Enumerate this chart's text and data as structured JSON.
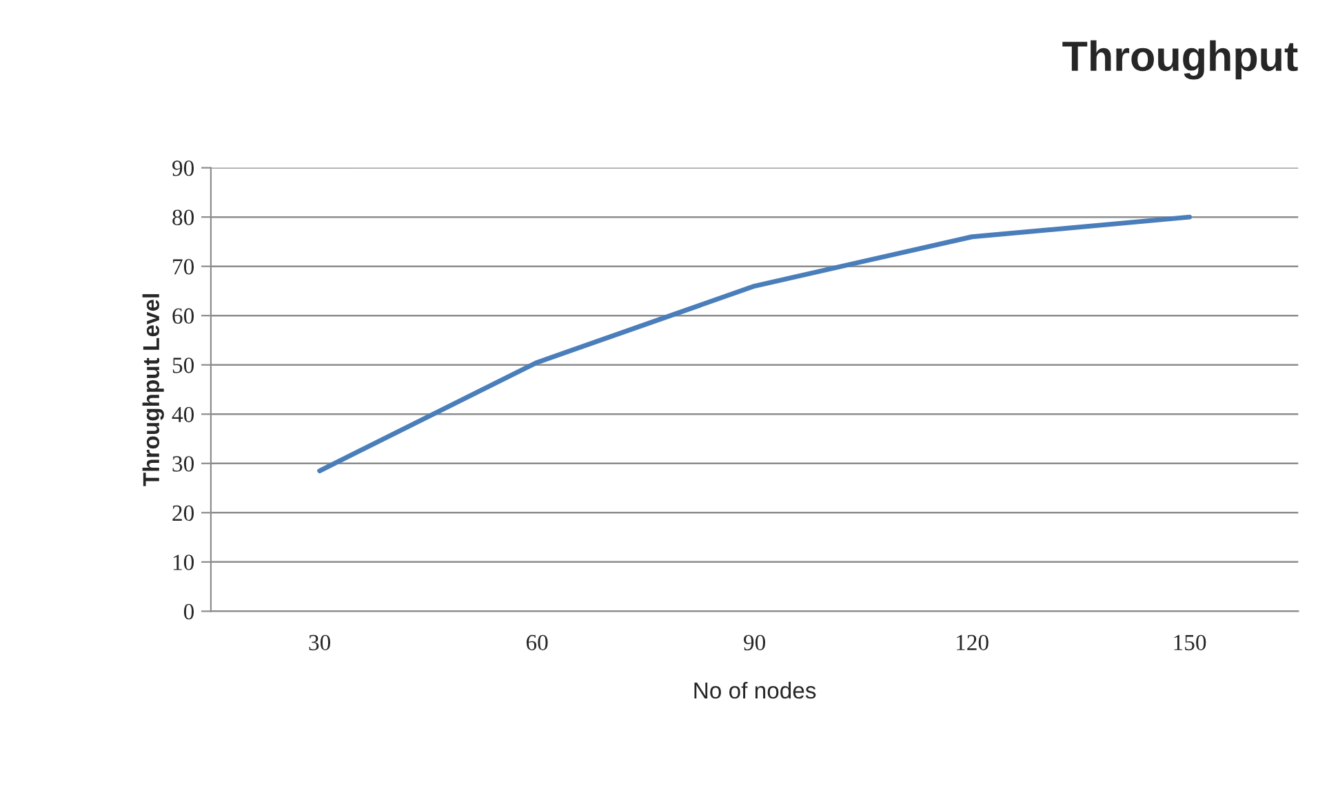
{
  "chart_data": {
    "type": "line",
    "title": "Throughput",
    "xlabel": "No of nodes",
    "ylabel": "Throughput Level",
    "categories": [
      "30",
      "60",
      "90",
      "120",
      "150"
    ],
    "series": [
      {
        "color": "#4a7ebb",
        "values": [
          28.5,
          50.5,
          66,
          76,
          80
        ]
      }
    ],
    "ylim": [
      0,
      90
    ],
    "yticks": [
      0,
      10,
      20,
      30,
      40,
      50,
      60,
      70,
      80,
      90
    ],
    "grid": "y",
    "marker": "none",
    "line_style": "solid"
  }
}
